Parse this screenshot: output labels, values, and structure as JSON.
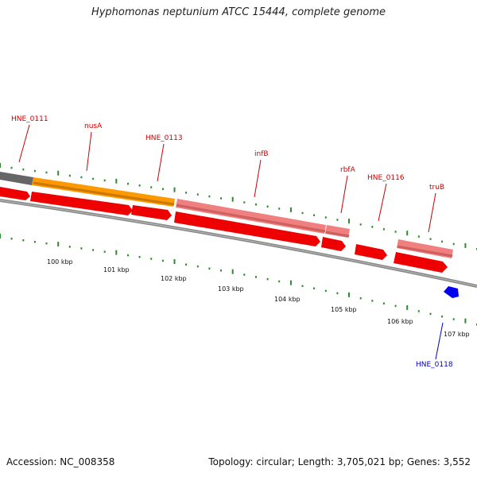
{
  "title": "Hyphomonas neptunium ATCC 15444, complete genome",
  "footer": {
    "accession": "Accession: NC_008358",
    "summary": "Topology: circular; Length: 3,705,021 bp; Genes: 3,552"
  },
  "ruler": {
    "labels": [
      "100 kbp",
      "101 kbp",
      "102 kbp",
      "103 kbp",
      "104 kbp",
      "105 kbp",
      "106 kbp",
      "107 kbp"
    ]
  },
  "genes": [
    {
      "name": "HNE_0111",
      "color": "#cc0000"
    },
    {
      "name": "nusA",
      "color": "#cc0000"
    },
    {
      "name": "HNE_0113",
      "color": "#cc0000"
    },
    {
      "name": "infB",
      "color": "#cc0000"
    },
    {
      "name": "rbfA",
      "color": "#cc0000"
    },
    {
      "name": "HNE_0116",
      "color": "#cc0000"
    },
    {
      "name": "truB",
      "color": "#cc0000"
    },
    {
      "name": "HNE_0118",
      "color": "#0000cc"
    }
  ],
  "colors": {
    "backbone": "#888888",
    "tick": "#2e8b2e",
    "cds": "#ee0000",
    "cds_light": "#f08080",
    "orange": "#ff9900",
    "gray_feature": "#666666",
    "reverse_gene": "#0000ee"
  }
}
